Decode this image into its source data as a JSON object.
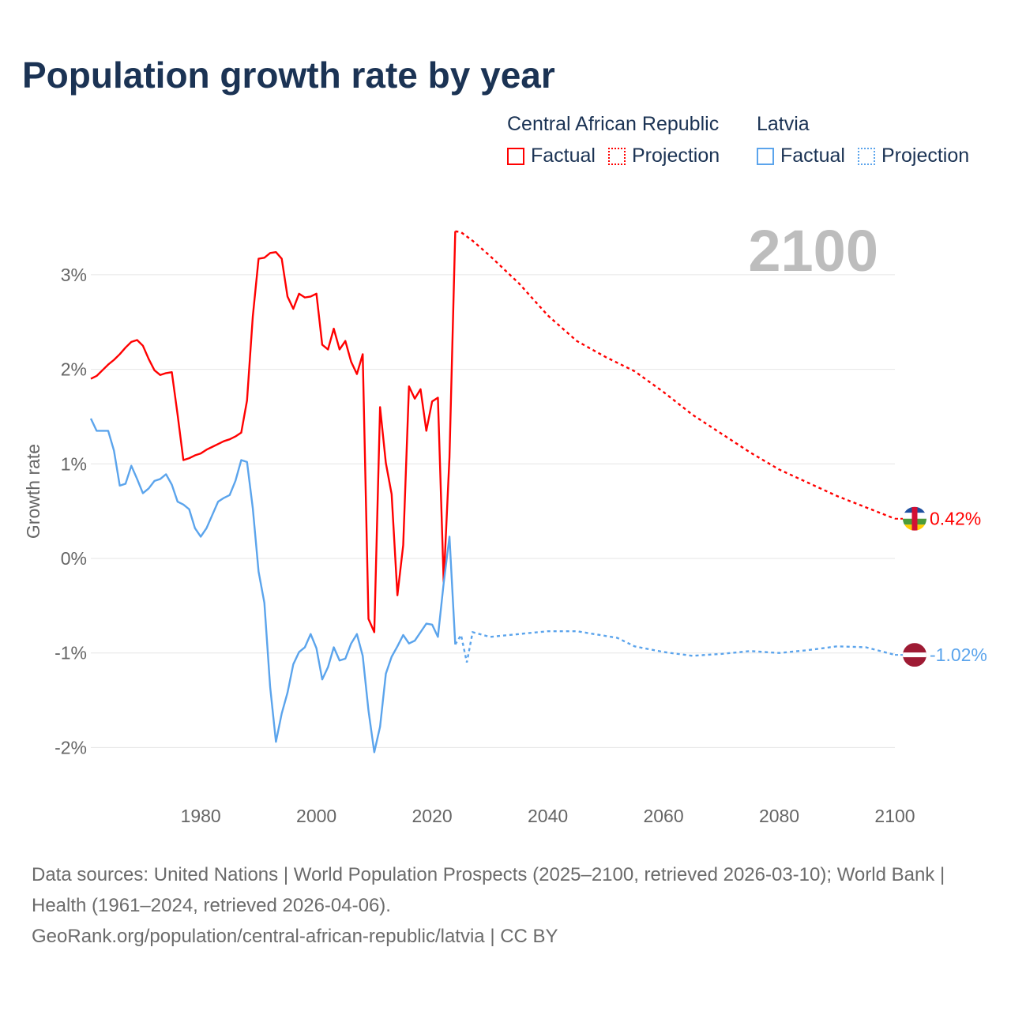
{
  "title": "Population growth rate by year",
  "legend": {
    "groups": [
      {
        "name": "Central African Republic",
        "color": "#ff0000",
        "factual_label": "Factual",
        "projection_label": "Projection"
      },
      {
        "name": "Latvia",
        "color": "#5ba4ec",
        "factual_label": "Factual",
        "projection_label": "Projection"
      }
    ]
  },
  "year_label": "2100",
  "footer": {
    "sources": "Data sources: United Nations | World Population Prospects (2025–2100, retrieved 2026-03-10); World Bank | Health (1961–2024, retrieved 2026-04-06).",
    "link": "GeoRank.org/population/central-african-republic/latvia | CC BY"
  },
  "chart_data": {
    "type": "line",
    "title": "Population growth rate by year",
    "xlabel": "",
    "ylabel": "Growth rate",
    "xlim": [
      1961,
      2100
    ],
    "ylim": [
      -2.5,
      3.5
    ],
    "x_ticks": [
      1980,
      2000,
      2020,
      2040,
      2060,
      2080,
      2100
    ],
    "x_tick_labels": [
      "1980",
      "2000",
      "2020",
      "2040",
      "2060",
      "2080",
      "2100"
    ],
    "y_ticks": [
      3,
      2,
      1,
      0,
      -1,
      -2
    ],
    "y_tick_labels": [
      "3%",
      "2%",
      "1%",
      "0%",
      "-1%",
      "-2%"
    ],
    "grid": true,
    "legend_position": "top-right",
    "series": [
      {
        "name": "Central African Republic",
        "color": "#ff0000",
        "factual_start_year": 1961,
        "factual": [
          1.9,
          1.93,
          1.99,
          2.05,
          2.1,
          2.16,
          2.23,
          2.29,
          2.31,
          2.25,
          2.11,
          1.99,
          1.94,
          1.96,
          1.97,
          1.52,
          1.04,
          1.06,
          1.09,
          1.11,
          1.15,
          1.18,
          1.21,
          1.24,
          1.26,
          1.29,
          1.33,
          1.67,
          2.56,
          3.17,
          3.18,
          3.23,
          3.24,
          3.17,
          2.77,
          2.64,
          2.8,
          2.76,
          2.77,
          2.8,
          2.26,
          2.21,
          2.43,
          2.21,
          2.3,
          2.08,
          1.95,
          2.16,
          -0.64,
          -0.78,
          1.6,
          1.01,
          0.68,
          -0.39,
          0.14,
          1.82,
          1.69,
          1.79,
          1.35,
          1.66,
          1.7,
          -0.25,
          1.07,
          3.46
        ],
        "projection": [
          [
            2024,
            3.46
          ],
          [
            2025,
            3.45
          ],
          [
            2027,
            3.36
          ],
          [
            2030,
            3.2
          ],
          [
            2035,
            2.91
          ],
          [
            2040,
            2.57
          ],
          [
            2045,
            2.3
          ],
          [
            2050,
            2.13
          ],
          [
            2055,
            1.98
          ],
          [
            2060,
            1.76
          ],
          [
            2065,
            1.52
          ],
          [
            2070,
            1.32
          ],
          [
            2075,
            1.12
          ],
          [
            2080,
            0.94
          ],
          [
            2085,
            0.8
          ],
          [
            2090,
            0.66
          ],
          [
            2095,
            0.54
          ],
          [
            2100,
            0.42
          ]
        ],
        "end_label": "0.42%",
        "flag": "central-african-republic-flag"
      },
      {
        "name": "Latvia",
        "color": "#5ba4ec",
        "factual_start_year": 1961,
        "factual": [
          1.48,
          1.35,
          1.35,
          1.35,
          1.14,
          0.77,
          0.79,
          0.98,
          0.84,
          0.69,
          0.74,
          0.82,
          0.84,
          0.89,
          0.78,
          0.6,
          0.57,
          0.52,
          0.32,
          0.23,
          0.32,
          0.46,
          0.6,
          0.64,
          0.67,
          0.82,
          1.04,
          1.02,
          0.53,
          -0.14,
          -0.47,
          -1.36,
          -1.94,
          -1.64,
          -1.42,
          -1.12,
          -0.99,
          -0.94,
          -0.8,
          -0.95,
          -1.28,
          -1.15,
          -0.94,
          -1.08,
          -1.06,
          -0.9,
          -0.8,
          -1.03,
          -1.61,
          -2.05,
          -1.78,
          -1.22,
          -1.04,
          -0.93,
          -0.81,
          -0.9,
          -0.87,
          -0.78,
          -0.69,
          -0.7,
          -0.83,
          -0.26,
          0.23,
          -0.91
        ],
        "projection": [
          [
            2024,
            -0.91
          ],
          [
            2025,
            -0.81
          ],
          [
            2026,
            -1.1
          ],
          [
            2027,
            -0.78
          ],
          [
            2030,
            -0.83
          ],
          [
            2035,
            -0.8
          ],
          [
            2040,
            -0.77
          ],
          [
            2045,
            -0.77
          ],
          [
            2050,
            -0.82
          ],
          [
            2052,
            -0.84
          ],
          [
            2055,
            -0.93
          ],
          [
            2060,
            -0.99
          ],
          [
            2065,
            -1.03
          ],
          [
            2070,
            -1.01
          ],
          [
            2075,
            -0.98
          ],
          [
            2080,
            -1.0
          ],
          [
            2085,
            -0.97
          ],
          [
            2090,
            -0.93
          ],
          [
            2095,
            -0.94
          ],
          [
            2100,
            -1.02
          ]
        ],
        "end_label": "-1.02%",
        "flag": "latvia-flag"
      }
    ]
  }
}
